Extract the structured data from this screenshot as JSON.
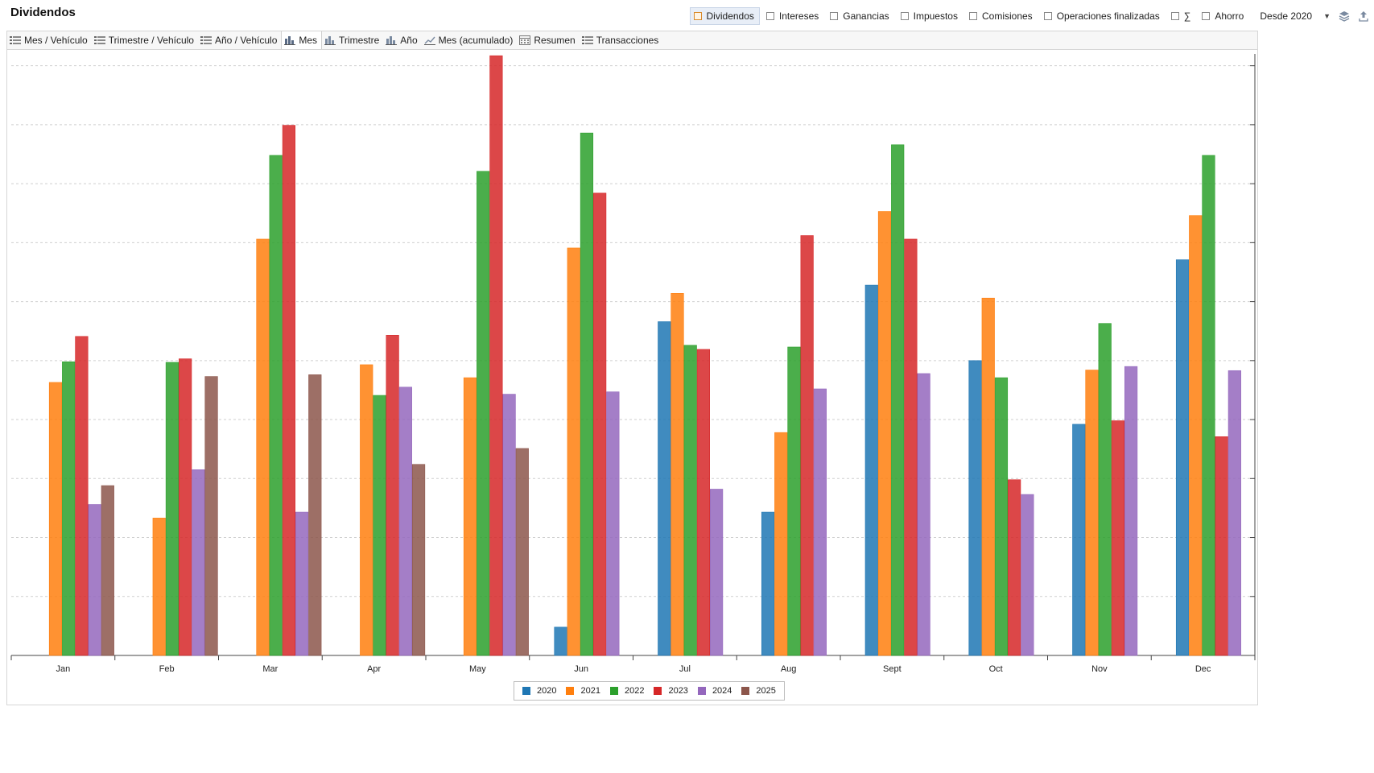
{
  "title": "Dividendos",
  "filters": [
    {
      "label": "Dividendos",
      "active": true
    },
    {
      "label": "Intereses",
      "active": false
    },
    {
      "label": "Ganancias",
      "active": false
    },
    {
      "label": "Impuestos",
      "active": false
    },
    {
      "label": "Comisiones",
      "active": false
    },
    {
      "label": "Operaciones finalizadas",
      "active": false
    },
    {
      "label": "∑",
      "active": false
    },
    {
      "label": "Ahorro",
      "active": false
    }
  ],
  "period": {
    "value": "Desde 2020"
  },
  "tabs": [
    {
      "label": "Mes / Vehículo",
      "icon": "list-icon",
      "active": false
    },
    {
      "label": "Trimestre / Vehículo",
      "icon": "list-icon",
      "active": false
    },
    {
      "label": "Año / Vehículo",
      "icon": "list-icon",
      "active": false
    },
    {
      "label": "Mes",
      "icon": "bar-chart-icon",
      "active": true
    },
    {
      "label": "Trimestre",
      "icon": "bar-chart-icon",
      "active": false
    },
    {
      "label": "Año",
      "icon": "bar-chart-icon",
      "active": false
    },
    {
      "label": "Mes (acumulado)",
      "icon": "line-chart-icon",
      "active": false
    },
    {
      "label": "Resumen",
      "icon": "calendar-icon",
      "active": false
    },
    {
      "label": "Transacciones",
      "icon": "list-icon",
      "active": false
    }
  ],
  "chart_data": {
    "type": "bar",
    "categories": [
      "Jan",
      "Feb",
      "Mar",
      "Apr",
      "May",
      "Jun",
      "Jul",
      "Aug",
      "Sept",
      "Oct",
      "Nov",
      "Dec"
    ],
    "ylim": [
      0,
      10.2
    ],
    "grid": true,
    "legend_position": "bottom-center",
    "series": [
      {
        "name": "2020",
        "color": "#1f77b4",
        "values": [
          0,
          0,
          0,
          0,
          0,
          0.48,
          5.66,
          2.43,
          6.28,
          5.0,
          3.92,
          6.71
        ]
      },
      {
        "name": "2021",
        "color": "#ff7f0e",
        "values": [
          4.63,
          2.33,
          7.06,
          4.93,
          4.71,
          6.91,
          6.14,
          3.78,
          7.53,
          6.06,
          4.84,
          7.46
        ]
      },
      {
        "name": "2022",
        "color": "#2ca02c",
        "values": [
          4.98,
          4.97,
          8.48,
          4.41,
          8.21,
          8.86,
          5.26,
          5.23,
          8.66,
          4.71,
          5.63,
          8.48
        ]
      },
      {
        "name": "2023",
        "color": "#d62728",
        "values": [
          5.41,
          5.03,
          8.99,
          5.43,
          10.17,
          7.84,
          5.19,
          7.12,
          7.06,
          2.98,
          3.98,
          3.71
        ]
      },
      {
        "name": "2024",
        "color": "#9467bd",
        "values": [
          2.56,
          3.15,
          2.43,
          4.55,
          4.43,
          4.47,
          2.82,
          4.52,
          4.78,
          2.73,
          4.9,
          4.83
        ]
      },
      {
        "name": "2025",
        "color": "#8c564b",
        "values": [
          2.88,
          4.73,
          4.76,
          3.24,
          3.51,
          0,
          0,
          0,
          0,
          0,
          0,
          0
        ]
      }
    ]
  }
}
